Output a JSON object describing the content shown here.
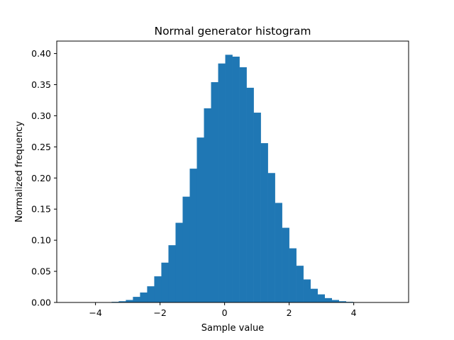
{
  "chart_data": {
    "type": "bar",
    "title": "Normal generator histogram",
    "xlabel": "Sample value",
    "ylabel": "Normalized frequency",
    "xlim": [
      -5.2,
      5.7
    ],
    "ylim": [
      0,
      0.42
    ],
    "xticks": [
      -4,
      -2,
      0,
      2,
      4
    ],
    "xtick_labels": [
      "−4",
      "−2",
      "0",
      "2",
      "4"
    ],
    "yticks": [
      0.0,
      0.05,
      0.1,
      0.15,
      0.2,
      0.25,
      0.3,
      0.35,
      0.4
    ],
    "ytick_labels": [
      "0.00",
      "0.05",
      "0.10",
      "0.15",
      "0.20",
      "0.25",
      "0.30",
      "0.35",
      "0.40"
    ],
    "grid": false,
    "bar_color": "#1f77b4",
    "bins": [
      {
        "x0": -4.82,
        "x1": -4.6,
        "value": 0.0001
      },
      {
        "x0": -4.6,
        "x1": -4.38,
        "value": 0.0001
      },
      {
        "x0": -4.38,
        "x1": -4.16,
        "value": 0.0001
      },
      {
        "x0": -4.16,
        "x1": -3.94,
        "value": 0.0002
      },
      {
        "x0": -3.94,
        "x1": -3.72,
        "value": 0.0003
      },
      {
        "x0": -3.72,
        "x1": -3.5,
        "value": 0.0005
      },
      {
        "x0": -3.5,
        "x1": -3.28,
        "value": 0.001
      },
      {
        "x0": -3.28,
        "x1": -3.06,
        "value": 0.002
      },
      {
        "x0": -3.06,
        "x1": -2.84,
        "value": 0.004
      },
      {
        "x0": -2.84,
        "x1": -2.62,
        "value": 0.009
      },
      {
        "x0": -2.62,
        "x1": -2.4,
        "value": 0.016
      },
      {
        "x0": -2.4,
        "x1": -2.18,
        "value": 0.026
      },
      {
        "x0": -2.18,
        "x1": -1.96,
        "value": 0.042
      },
      {
        "x0": -1.96,
        "x1": -1.74,
        "value": 0.064
      },
      {
        "x0": -1.74,
        "x1": -1.52,
        "value": 0.092
      },
      {
        "x0": -1.52,
        "x1": -1.3,
        "value": 0.128
      },
      {
        "x0": -1.3,
        "x1": -1.08,
        "value": 0.17
      },
      {
        "x0": -1.08,
        "x1": -0.86,
        "value": 0.215
      },
      {
        "x0": -0.86,
        "x1": -0.64,
        "value": 0.265
      },
      {
        "x0": -0.64,
        "x1": -0.42,
        "value": 0.312
      },
      {
        "x0": -0.42,
        "x1": -0.2,
        "value": 0.354
      },
      {
        "x0": -0.2,
        "x1": 0.02,
        "value": 0.384
      },
      {
        "x0": 0.02,
        "x1": 0.24,
        "value": 0.398
      },
      {
        "x0": 0.24,
        "x1": 0.46,
        "value": 0.395
      },
      {
        "x0": 0.46,
        "x1": 0.68,
        "value": 0.378
      },
      {
        "x0": 0.68,
        "x1": 0.9,
        "value": 0.345
      },
      {
        "x0": 0.9,
        "x1": 1.12,
        "value": 0.305
      },
      {
        "x0": 1.12,
        "x1": 1.34,
        "value": 0.256
      },
      {
        "x0": 1.34,
        "x1": 1.56,
        "value": 0.208
      },
      {
        "x0": 1.56,
        "x1": 1.78,
        "value": 0.16
      },
      {
        "x0": 1.78,
        "x1": 2.0,
        "value": 0.12
      },
      {
        "x0": 2.0,
        "x1": 2.22,
        "value": 0.087
      },
      {
        "x0": 2.22,
        "x1": 2.44,
        "value": 0.059
      },
      {
        "x0": 2.44,
        "x1": 2.66,
        "value": 0.037
      },
      {
        "x0": 2.66,
        "x1": 2.88,
        "value": 0.022
      },
      {
        "x0": 2.88,
        "x1": 3.1,
        "value": 0.013
      },
      {
        "x0": 3.1,
        "x1": 3.32,
        "value": 0.007
      },
      {
        "x0": 3.32,
        "x1": 3.54,
        "value": 0.004
      },
      {
        "x0": 3.54,
        "x1": 3.76,
        "value": 0.002
      },
      {
        "x0": 3.76,
        "x1": 3.98,
        "value": 0.001
      },
      {
        "x0": 3.98,
        "x1": 4.2,
        "value": 0.0005
      },
      {
        "x0": 4.2,
        "x1": 4.42,
        "value": 0.0003
      },
      {
        "x0": 4.42,
        "x1": 4.64,
        "value": 0.0002
      },
      {
        "x0": 4.64,
        "x1": 4.86,
        "value": 0.0001
      },
      {
        "x0": 4.86,
        "x1": 5.08,
        "value": 0.0001
      },
      {
        "x0": 5.08,
        "x1": 5.3,
        "value": 0.0001
      }
    ]
  }
}
